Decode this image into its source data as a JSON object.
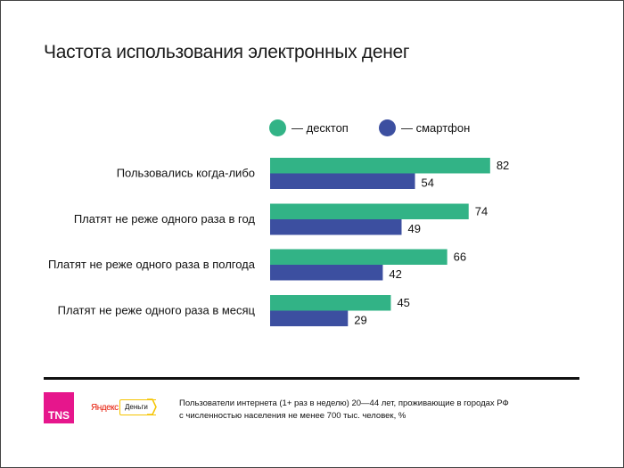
{
  "chart_data": {
    "type": "bar",
    "orientation": "horizontal",
    "title": "Частота использования электронных денег",
    "categories": [
      "Пользовались когда-либо",
      "Платят не реже одного раза в год",
      "Платят не реже одного раза в полгода",
      "Платят не реже одного раза в месяц"
    ],
    "series": [
      {
        "name": "— десктоп",
        "color": "#32b386",
        "values": [
          82,
          74,
          66,
          45
        ]
      },
      {
        "name": "— смартфон",
        "color": "#3c4fa0",
        "values": [
          54,
          49,
          42,
          29
        ]
      }
    ],
    "xlim": [
      0,
      100
    ],
    "grid": false,
    "legend": "top",
    "xlabel": "",
    "ylabel": ""
  },
  "footer": {
    "tns_logo": "TNS",
    "yandex_logo": "Яндекс",
    "dengi_logo": "Деньги",
    "note_line1": "Пользователи интернета (1+ раз в неделю) 20—44 лет, проживающие в городах РФ",
    "note_line2": "с численностью населения не менее 700 тыс. человек, %"
  }
}
